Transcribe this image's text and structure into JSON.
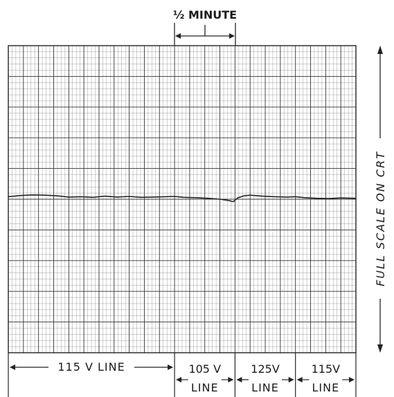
{
  "chart_data": {
    "type": "line",
    "title": "",
    "xlabel": "",
    "ylabel": "",
    "time_scale_label": "½ MINUTE",
    "full_scale_label": "FULL SCALE ON CRT",
    "segments": [
      {
        "label": "115 V LINE",
        "minutes_from": 0,
        "minutes_to": 1.375
      },
      {
        "label": "105 V LINE",
        "minutes_from": 1.375,
        "minutes_to": 1.875
      },
      {
        "label": "125V LINE",
        "minutes_from": 1.875,
        "minutes_to": 2.375
      },
      {
        "label": "115V LINE",
        "minutes_from": 2.375,
        "minutes_to": 2.875
      }
    ],
    "xlim": [
      0,
      2.875
    ],
    "ylim": [
      0,
      1
    ],
    "grid": true,
    "series": [
      {
        "color": "#222222",
        "x": [
          0,
          0.1,
          0.2,
          0.3,
          0.4,
          0.5,
          0.6,
          0.7,
          0.8,
          0.9,
          1.0,
          1.1,
          1.2,
          1.3,
          1.375,
          1.45,
          1.55,
          1.65,
          1.75,
          1.82,
          1.86,
          1.9,
          1.95,
          2.0,
          2.1,
          2.2,
          2.3,
          2.375,
          2.45,
          2.55,
          2.65,
          2.75,
          2.875
        ],
        "y": [
          0.508,
          0.512,
          0.514,
          0.513,
          0.511,
          0.507,
          0.508,
          0.506,
          0.51,
          0.507,
          0.509,
          0.506,
          0.507,
          0.508,
          0.509,
          0.506,
          0.505,
          0.503,
          0.5,
          0.496,
          0.492,
          0.505,
          0.511,
          0.513,
          0.51,
          0.508,
          0.507,
          0.508,
          0.505,
          0.503,
          0.502,
          0.504,
          0.503
        ]
      }
    ]
  }
}
